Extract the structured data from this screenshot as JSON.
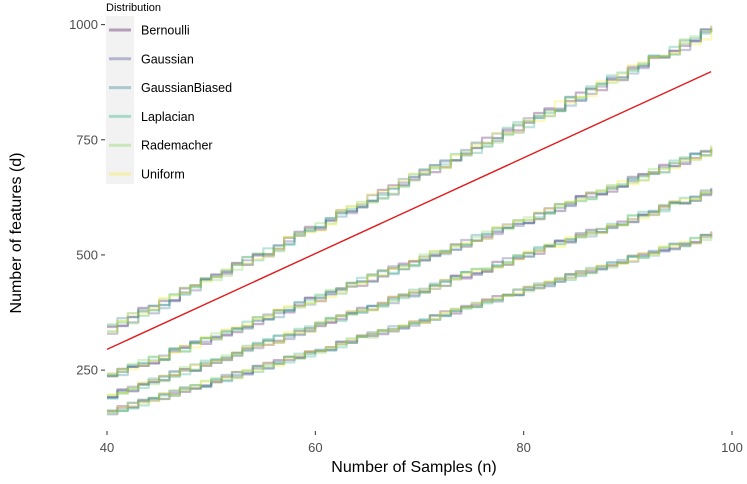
{
  "chart_data": {
    "type": "line",
    "title": "",
    "xlabel": "Number of Samples (n)",
    "ylabel": "Number of features (d)",
    "xlim": [
      40,
      100
    ],
    "ylim": [
      120,
      1010
    ],
    "x_ticks": [
      40,
      60,
      80,
      100
    ],
    "y_ticks": [
      250,
      500,
      750,
      1000
    ],
    "grid": false,
    "legend": {
      "title": "Distribution",
      "placement": "top-left",
      "entries": [
        "Bernoulli",
        "Gaussian",
        "GaussianBiased",
        "Laplacian",
        "Rademacher",
        "Uniform"
      ]
    },
    "series": [
      {
        "name": "Bernoulli",
        "color": "#440154"
      },
      {
        "name": "Gaussian",
        "color": "#414487"
      },
      {
        "name": "GaussianBiased",
        "color": "#2a788e"
      },
      {
        "name": "Laplacian",
        "color": "#22a884"
      },
      {
        "name": "Rademacher",
        "color": "#7ad151"
      },
      {
        "name": "Uniform",
        "color": "#fde725"
      }
    ],
    "bands": [
      {
        "x": [
          40,
          98
        ],
        "y": [
          340,
          990
        ]
      },
      {
        "x": [
          40,
          98
        ],
        "y": [
          238,
          730
        ]
      },
      {
        "x": [
          40,
          98
        ],
        "y": [
          195,
          640
        ]
      },
      {
        "x": [
          40,
          98
        ],
        "y": [
          160,
          545
        ]
      }
    ],
    "reference_line": {
      "x": [
        40,
        98
      ],
      "y": [
        295,
        898
      ],
      "color": "#e31a1c"
    }
  }
}
